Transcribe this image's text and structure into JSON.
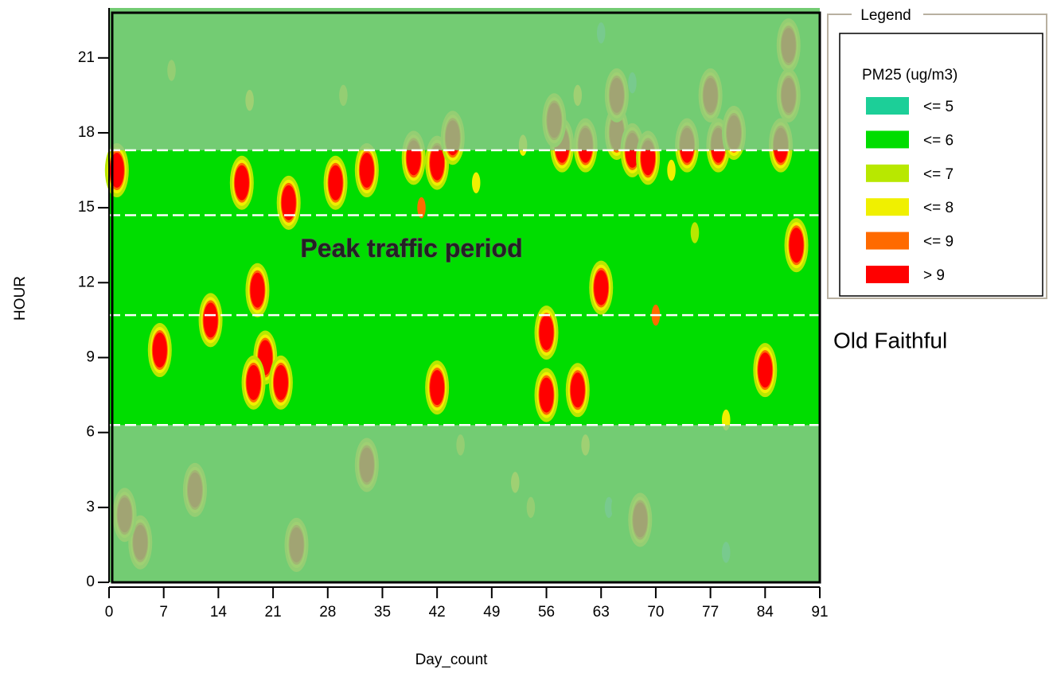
{
  "chart_data": {
    "type": "contour",
    "x_label": "Day_count",
    "y_label": "HOUR",
    "xlim": [
      0,
      91
    ],
    "ylim": [
      0,
      23
    ],
    "xticks": [
      0,
      7,
      14,
      21,
      28,
      35,
      42,
      49,
      56,
      63,
      70,
      77,
      84,
      91
    ],
    "yticks": [
      0,
      3,
      6,
      9,
      12,
      15,
      18,
      21
    ],
    "legend_title": "Legend",
    "legend_subtitle": "PM25 (ug/m3)",
    "highlight": {
      "from": 6.3,
      "to": 17.3,
      "muted_color": "#8cc88c"
    },
    "reference_lines": [
      6.3,
      10.7,
      14.7,
      17.3
    ],
    "annotations": [
      {
        "text": "Peak traffic period",
        "x": 24.5,
        "y": 13.3
      },
      {
        "text": "Old Faithful"
      }
    ],
    "series": [
      {
        "name": "<= 5",
        "color": "#1ccf98",
        "x": [
          63,
          67,
          64,
          79,
          78
        ],
        "y": [
          22,
          20,
          3,
          1.2,
          19.5
        ]
      },
      {
        "name": "<= 6",
        "color": "#00dd00",
        "x": [
          21,
          35,
          12,
          38,
          18,
          22,
          47,
          65
        ],
        "y": [
          18.3,
          21,
          21.5,
          18,
          1.5,
          5,
          3,
          3
        ]
      },
      {
        "name": "<= 7",
        "color": "#b8e800",
        "x": [
          8,
          30,
          45,
          75,
          54
        ],
        "y": [
          20.5,
          19.5,
          5.5,
          14,
          3
        ]
      },
      {
        "name": "<= 8",
        "color": "#f0f000",
        "x": [
          18,
          47,
          53,
          72,
          61,
          52,
          79,
          60
        ],
        "y": [
          19.3,
          16,
          17.5,
          16.5,
          5.5,
          4,
          6.5,
          19.5
        ]
      },
      {
        "name": "<= 9",
        "color": "#ff6a00",
        "x": [
          40,
          70
        ],
        "y": [
          15,
          10.7
        ]
      },
      {
        "name": "> 9",
        "color": "#ff0000",
        "x": [
          1,
          6.5,
          19,
          20,
          18.5,
          22,
          23,
          29,
          33,
          39,
          42,
          44,
          42,
          56,
          56,
          58,
          61,
          63,
          65,
          67,
          69,
          60,
          74,
          77,
          78,
          80,
          86,
          87,
          87,
          84,
          88,
          68,
          4,
          2,
          11,
          13,
          24,
          33,
          57,
          65,
          17
        ],
        "y": [
          16.5,
          9.3,
          11.7,
          9,
          8,
          8,
          15.2,
          16,
          16.5,
          17,
          16.8,
          17.8,
          7.8,
          7.5,
          10,
          17.5,
          17.5,
          11.8,
          18,
          17.3,
          17,
          7.7,
          17.5,
          19.5,
          17.5,
          18,
          17.5,
          19.5,
          21.5,
          8.5,
          13.5,
          2.5,
          1.6,
          2.7,
          3.7,
          10.5,
          1.5,
          4.7,
          18.5,
          19.5,
          16
        ]
      }
    ]
  }
}
